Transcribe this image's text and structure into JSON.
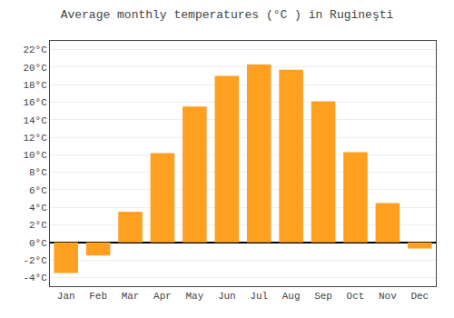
{
  "chart_data": {
    "type": "bar",
    "title": "Average monthly temperatures (°C ) in Rugineşti",
    "categories": [
      "Jan",
      "Feb",
      "Mar",
      "Apr",
      "May",
      "Jun",
      "Jul",
      "Aug",
      "Sep",
      "Oct",
      "Nov",
      "Dec"
    ],
    "values": [
      -3.5,
      -1.5,
      3.5,
      10.2,
      15.5,
      19.0,
      20.3,
      19.7,
      16.1,
      10.3,
      4.5,
      -0.7
    ],
    "color": "#FFA020",
    "ylim": [
      -5,
      23
    ],
    "yticks": [
      {
        "value": -4,
        "label": "-4°C"
      },
      {
        "value": -2,
        "label": "-2°C"
      },
      {
        "value": 0,
        "label": "0°C"
      },
      {
        "value": 2,
        "label": "2°C"
      },
      {
        "value": 4,
        "label": "4°C"
      },
      {
        "value": 6,
        "label": "6°C"
      },
      {
        "value": 8,
        "label": "8°C"
      },
      {
        "value": 10,
        "label": "10°C"
      },
      {
        "value": 12,
        "label": "12°C"
      },
      {
        "value": 14,
        "label": "14°C"
      },
      {
        "value": 16,
        "label": "16°C"
      },
      {
        "value": 18,
        "label": "18°C"
      },
      {
        "value": 20,
        "label": "20°C"
      },
      {
        "value": 22,
        "label": "22°C"
      }
    ],
    "grid": true
  }
}
